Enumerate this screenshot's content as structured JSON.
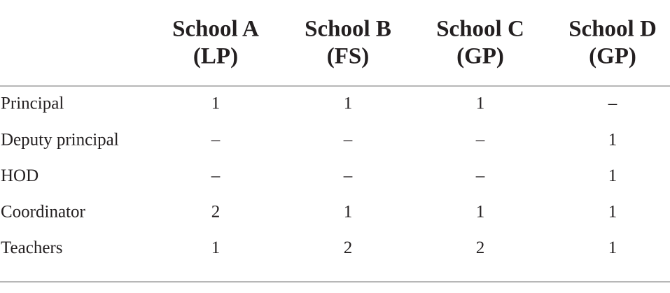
{
  "table": {
    "columns": [
      {
        "name": "School A",
        "group": "(LP)"
      },
      {
        "name": "School B",
        "group": "(FS)"
      },
      {
        "name": "School C",
        "group": "(GP)"
      },
      {
        "name": "School D",
        "group": "(GP)"
      }
    ],
    "rows": [
      {
        "label": "Principal",
        "cells": [
          1,
          1,
          1,
          "–"
        ]
      },
      {
        "label": "Deputy principal",
        "cells": [
          "–",
          "–",
          "–",
          1
        ]
      },
      {
        "label": "HOD",
        "cells": [
          "–",
          "–",
          "–",
          1
        ]
      },
      {
        "label": "Coordinator",
        "cells": [
          2,
          1,
          1,
          1
        ]
      },
      {
        "label": "Teachers",
        "cells": [
          1,
          2,
          2,
          1
        ]
      }
    ]
  }
}
